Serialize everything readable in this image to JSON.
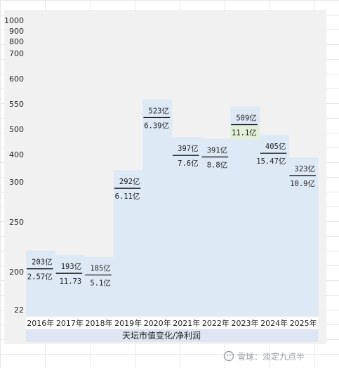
{
  "chart_data": {
    "type": "bar",
    "xlabel": "天坛市值变化/净利润",
    "y_ticks": [
      "1000",
      "900",
      "800",
      "700",
      "600",
      "550",
      "500",
      "400",
      "300",
      "250",
      "200",
      "22"
    ],
    "categories": [
      "2016年",
      "2017年",
      "2018年",
      "2019年",
      "2020年",
      "2021年",
      "2022年",
      "2023年",
      "2024年",
      "2025年"
    ],
    "series": [
      {
        "name": "市值",
        "values": [
          203,
          193,
          185,
          292,
          523,
          397,
          391,
          509,
          405,
          323
        ],
        "labels": [
          "203亿",
          "193亿",
          "185亿",
          "292亿",
          "523亿",
          "397亿",
          "391亿",
          "509亿",
          "405亿",
          "323亿"
        ]
      },
      {
        "name": "净利润",
        "labels": [
          "2.57亿",
          "11.73",
          "5.1亿",
          "6.11亿",
          "6.39亿",
          "7.6亿",
          "8.8亿",
          "11.1亿",
          "15.47亿",
          "10.9亿"
        ]
      }
    ],
    "colors": {
      "bar_fill": "#ddeaf6",
      "highlight_fill": "#e2f0d9",
      "axis_band": "#dde6f2",
      "label_line": "#000000"
    },
    "highlight_index": 7,
    "grid": false
  },
  "watermark": {
    "text": "雪球：淡定九点半",
    "icon": "snowball-icon"
  }
}
